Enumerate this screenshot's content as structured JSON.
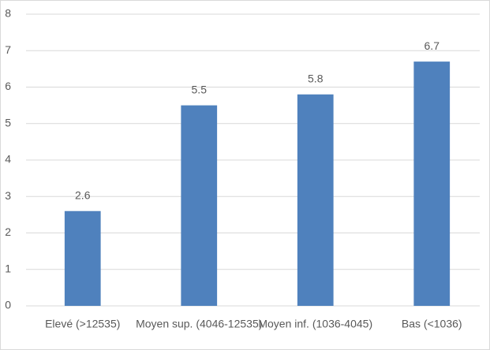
{
  "chart_data": {
    "type": "bar",
    "categories": [
      "Elevé (>12535)",
      "Moyen sup. (4046-12535)",
      "Moyen inf. (1036-4045)",
      "Bas (<1036)"
    ],
    "values": [
      2.6,
      5.5,
      5.8,
      6.7
    ],
    "color": "#4f81bd",
    "ylim": [
      0,
      8
    ],
    "yticks": [
      0,
      1,
      2,
      3,
      4,
      5,
      6,
      7,
      8
    ],
    "grid": true
  }
}
